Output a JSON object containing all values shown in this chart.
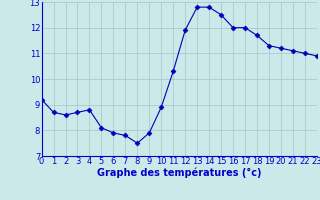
{
  "x": [
    0,
    1,
    2,
    3,
    4,
    5,
    6,
    7,
    8,
    9,
    10,
    11,
    12,
    13,
    14,
    15,
    16,
    17,
    18,
    19,
    20,
    21,
    22,
    23
  ],
  "y": [
    9.2,
    8.7,
    8.6,
    8.7,
    8.8,
    8.1,
    7.9,
    7.8,
    7.5,
    7.9,
    8.9,
    10.3,
    11.9,
    12.8,
    12.8,
    12.5,
    12.0,
    12.0,
    11.7,
    11.3,
    11.2,
    11.1,
    11.0,
    10.9
  ],
  "line_color": "#0000bb",
  "marker": "D",
  "marker_size": 2.5,
  "bg_color": "#cce8e8",
  "grid_color": "#aacccc",
  "xlabel": "Graphe des températures (°c)",
  "xlabel_color": "#0000cc",
  "xlabel_fontsize": 7,
  "tick_color": "#0000cc",
  "tick_fontsize": 6,
  "ylim": [
    7,
    13
  ],
  "xlim": [
    0,
    23
  ],
  "yticks": [
    7,
    8,
    9,
    10,
    11,
    12,
    13
  ],
  "xticks": [
    0,
    1,
    2,
    3,
    4,
    5,
    6,
    7,
    8,
    9,
    10,
    11,
    12,
    13,
    14,
    15,
    16,
    17,
    18,
    19,
    20,
    21,
    22,
    23
  ]
}
